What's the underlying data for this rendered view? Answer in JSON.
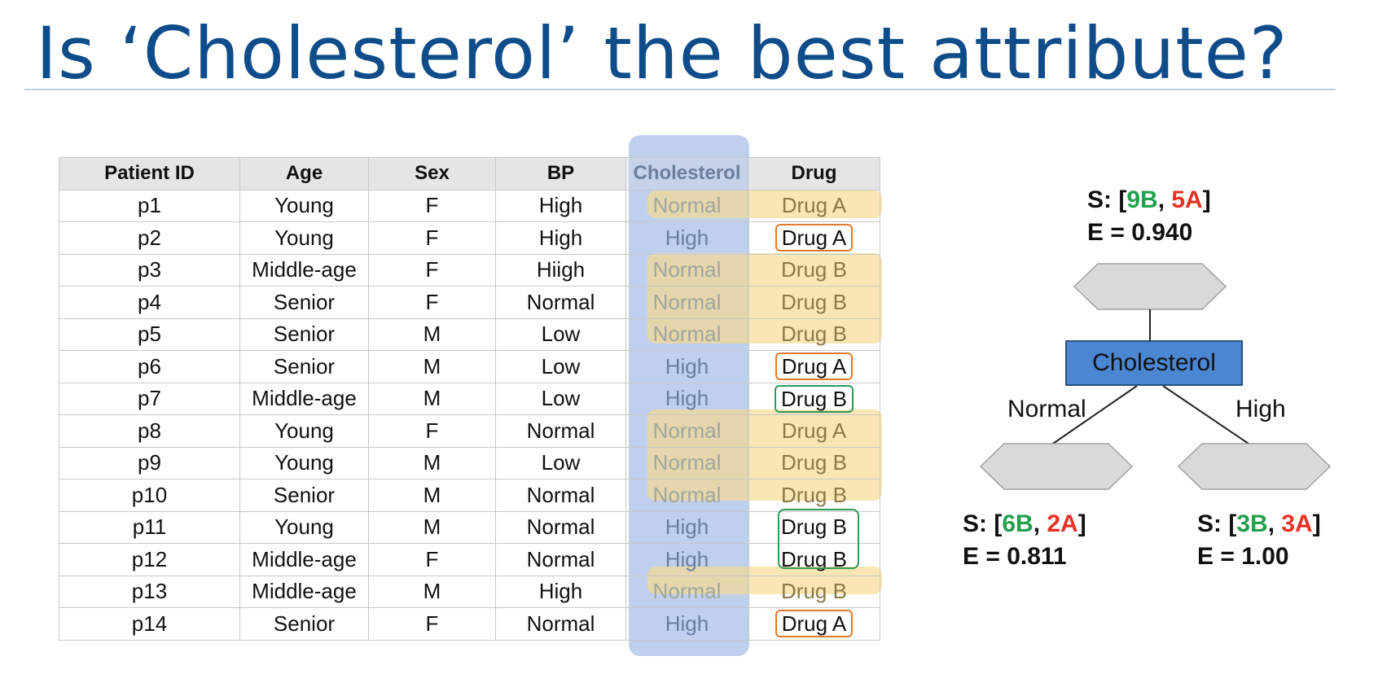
{
  "title": "Is ‘Cholesterol’ the best attribute?",
  "table": {
    "headers": [
      "Patient ID",
      "Age",
      "Sex",
      "BP",
      "Cholesterol",
      "Drug"
    ],
    "rows": [
      [
        "p1",
        "Young",
        "F",
        "High",
        "Normal",
        "Drug A"
      ],
      [
        "p2",
        "Young",
        "F",
        "High",
        "High",
        "Drug A"
      ],
      [
        "p3",
        "Middle-age",
        "F",
        "Hiigh",
        "Normal",
        "Drug B"
      ],
      [
        "p4",
        "Senior",
        "F",
        "Normal",
        "Normal",
        "Drug B"
      ],
      [
        "p5",
        "Senior",
        "M",
        "Low",
        "Normal",
        "Drug B"
      ],
      [
        "p6",
        "Senior",
        "M",
        "Low",
        "High",
        "Drug A"
      ],
      [
        "p7",
        "Middle-age",
        "M",
        "Low",
        "High",
        "Drug B"
      ],
      [
        "p8",
        "Young",
        "F",
        "Normal",
        "Normal",
        "Drug A"
      ],
      [
        "p9",
        "Young",
        "M",
        "Low",
        "Normal",
        "Drug B"
      ],
      [
        "p10",
        "Senior",
        "M",
        "Normal",
        "Normal",
        "Drug B"
      ],
      [
        "p11",
        "Young",
        "M",
        "Normal",
        "High",
        "Drug B"
      ],
      [
        "p12",
        "Middle-age",
        "F",
        "Normal",
        "High",
        "Drug B"
      ],
      [
        "p13",
        "Middle-age",
        "M",
        "High",
        "Normal",
        "Drug B"
      ],
      [
        "p14",
        "Senior",
        "F",
        "Normal",
        "High",
        "Drug A"
      ]
    ]
  },
  "tree": {
    "root": {
      "s_prefix": "S: [",
      "b_count": "9",
      "b_letter": "B",
      "sep": ", ",
      "a_count": "5",
      "a_letter": "A",
      "s_suffix": "]",
      "entropy": "E = 0.940"
    },
    "node_label": "Cholesterol",
    "left_branch": "Normal",
    "right_branch": "High",
    "left": {
      "s_prefix": "S: [",
      "b_count": "6",
      "b_letter": "B",
      "sep": ", ",
      "a_count": "2",
      "a_letter": "A",
      "s_suffix": "]",
      "entropy": "E = 0.811"
    },
    "right": {
      "s_prefix": "S: [",
      "b_count": "3",
      "b_letter": "B",
      "sep": ", ",
      "a_count": "3",
      "a_letter": "A",
      "s_suffix": "]",
      "entropy": "E = 1.00"
    }
  },
  "colors": {
    "title": "#0f4c8a",
    "drug_b": "#22a04e",
    "drug_a": "#e53224",
    "node_fill": "#4a86d2",
    "hexagon_fill": "#d9d9d9"
  }
}
